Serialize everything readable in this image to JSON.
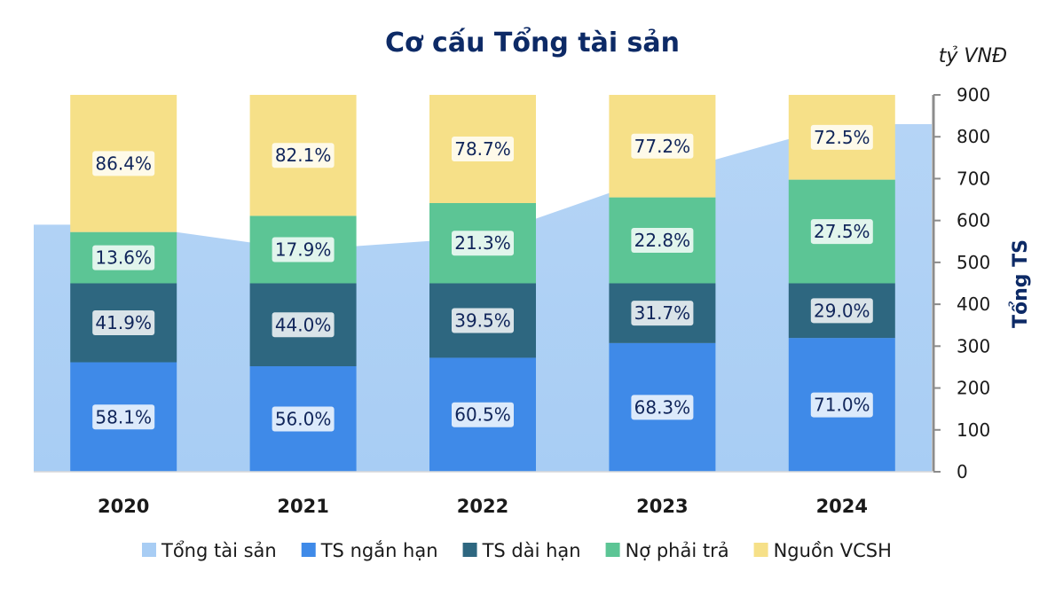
{
  "chart_data": {
    "type": "bar",
    "title": "Cơ cấu Tổng tài sản",
    "unit_label": "tỷ VNĐ",
    "ylabel": "Tổng TS",
    "ylim": [
      0,
      900
    ],
    "yticks": [
      0,
      100,
      200,
      300,
      400,
      500,
      600,
      700,
      800,
      900
    ],
    "categories": [
      "2020",
      "2021",
      "2022",
      "2023",
      "2024"
    ],
    "area_series": {
      "name": "Tổng tài sản",
      "values": [
        590,
        530,
        560,
        710,
        830
      ],
      "color": "#a8cdf4"
    },
    "stack_asset": [
      {
        "name": "TS ngắn hạn",
        "color": "#3f8ae8",
        "values": [
          58.1,
          56.0,
          60.5,
          68.3,
          71.0
        ],
        "labels": [
          "58.1%",
          "56.0%",
          "60.5%",
          "68.3%",
          "71.0%"
        ]
      },
      {
        "name": "TS dài hạn",
        "color": "#2e6780",
        "values": [
          41.9,
          44.0,
          39.5,
          31.7,
          29.0
        ],
        "labels": [
          "41.9%",
          "44.0%",
          "39.5%",
          "31.7%",
          "29.0%"
        ]
      }
    ],
    "stack_source": [
      {
        "name": "Nợ phải trả",
        "color": "#5cc595",
        "values": [
          13.6,
          17.9,
          21.3,
          22.8,
          27.5
        ],
        "labels": [
          "13.6%",
          "17.9%",
          "21.3%",
          "22.8%",
          "27.5%"
        ]
      },
      {
        "name": "Nguồn VCSH",
        "color": "#f6e088",
        "values": [
          86.4,
          82.1,
          78.7,
          77.2,
          72.5
        ],
        "labels": [
          "86.4%",
          "82.1%",
          "78.7%",
          "77.2%",
          "72.5%"
        ]
      }
    ],
    "stack_asset_scale": 450,
    "legend_position": "bottom",
    "grid": false
  }
}
